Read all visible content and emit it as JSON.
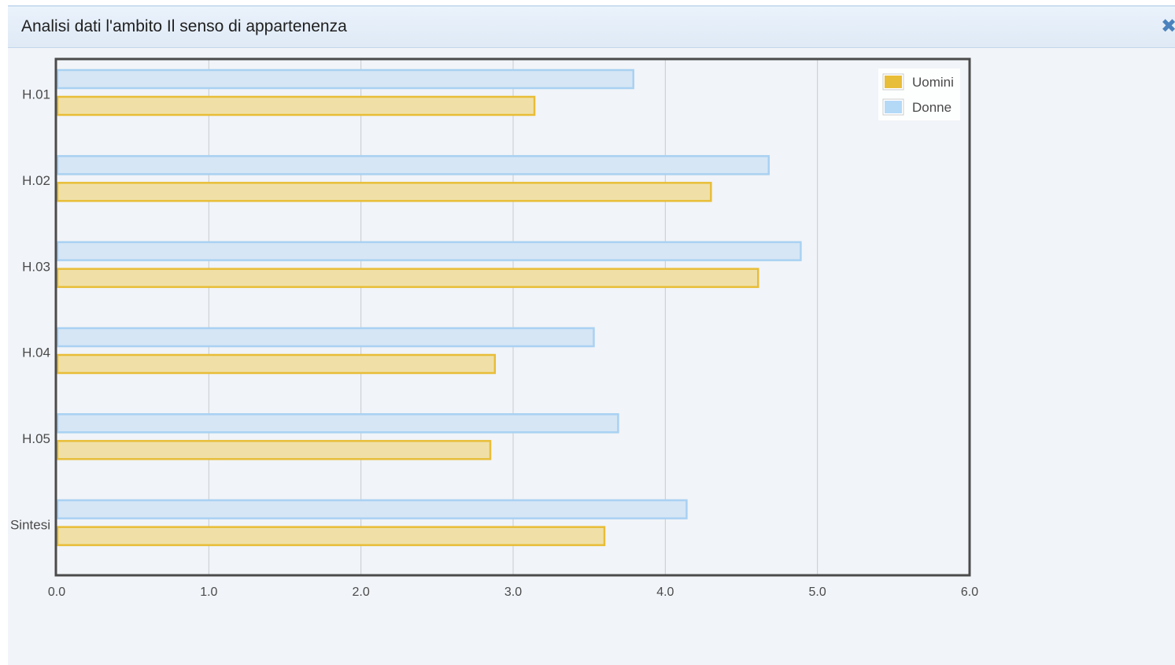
{
  "window": {
    "title": "Analisi dati l'ambito Il senso di appartenenza",
    "close_icon": "close-icon"
  },
  "colors": {
    "uomini_fill": "#f0e0a8",
    "uomini_stroke": "#e8bd37",
    "donne_fill": "#d6e6f5",
    "donne_stroke": "#a9d1f2",
    "legend_uomini": "#e8bd37",
    "legend_donne": "#b3d9f7"
  },
  "chart_data": {
    "type": "bar",
    "orientation": "horizontal",
    "categories": [
      "H.01",
      "H.02",
      "H.03",
      "H.04",
      "H.05",
      "Sintesi"
    ],
    "series": [
      {
        "name": "Donne",
        "values": [
          3.79,
          4.68,
          4.89,
          3.53,
          3.69,
          4.14
        ]
      },
      {
        "name": "Uomini",
        "values": [
          3.14,
          4.3,
          4.61,
          2.88,
          2.85,
          3.6
        ]
      }
    ],
    "xlim": [
      0,
      6
    ],
    "xticks": [
      "0.0",
      "1.0",
      "2.0",
      "3.0",
      "4.0",
      "5.0",
      "6.0"
    ],
    "grid": true,
    "legend": {
      "position": "top-right",
      "entries": [
        "Uomini",
        "Donne"
      ]
    }
  }
}
